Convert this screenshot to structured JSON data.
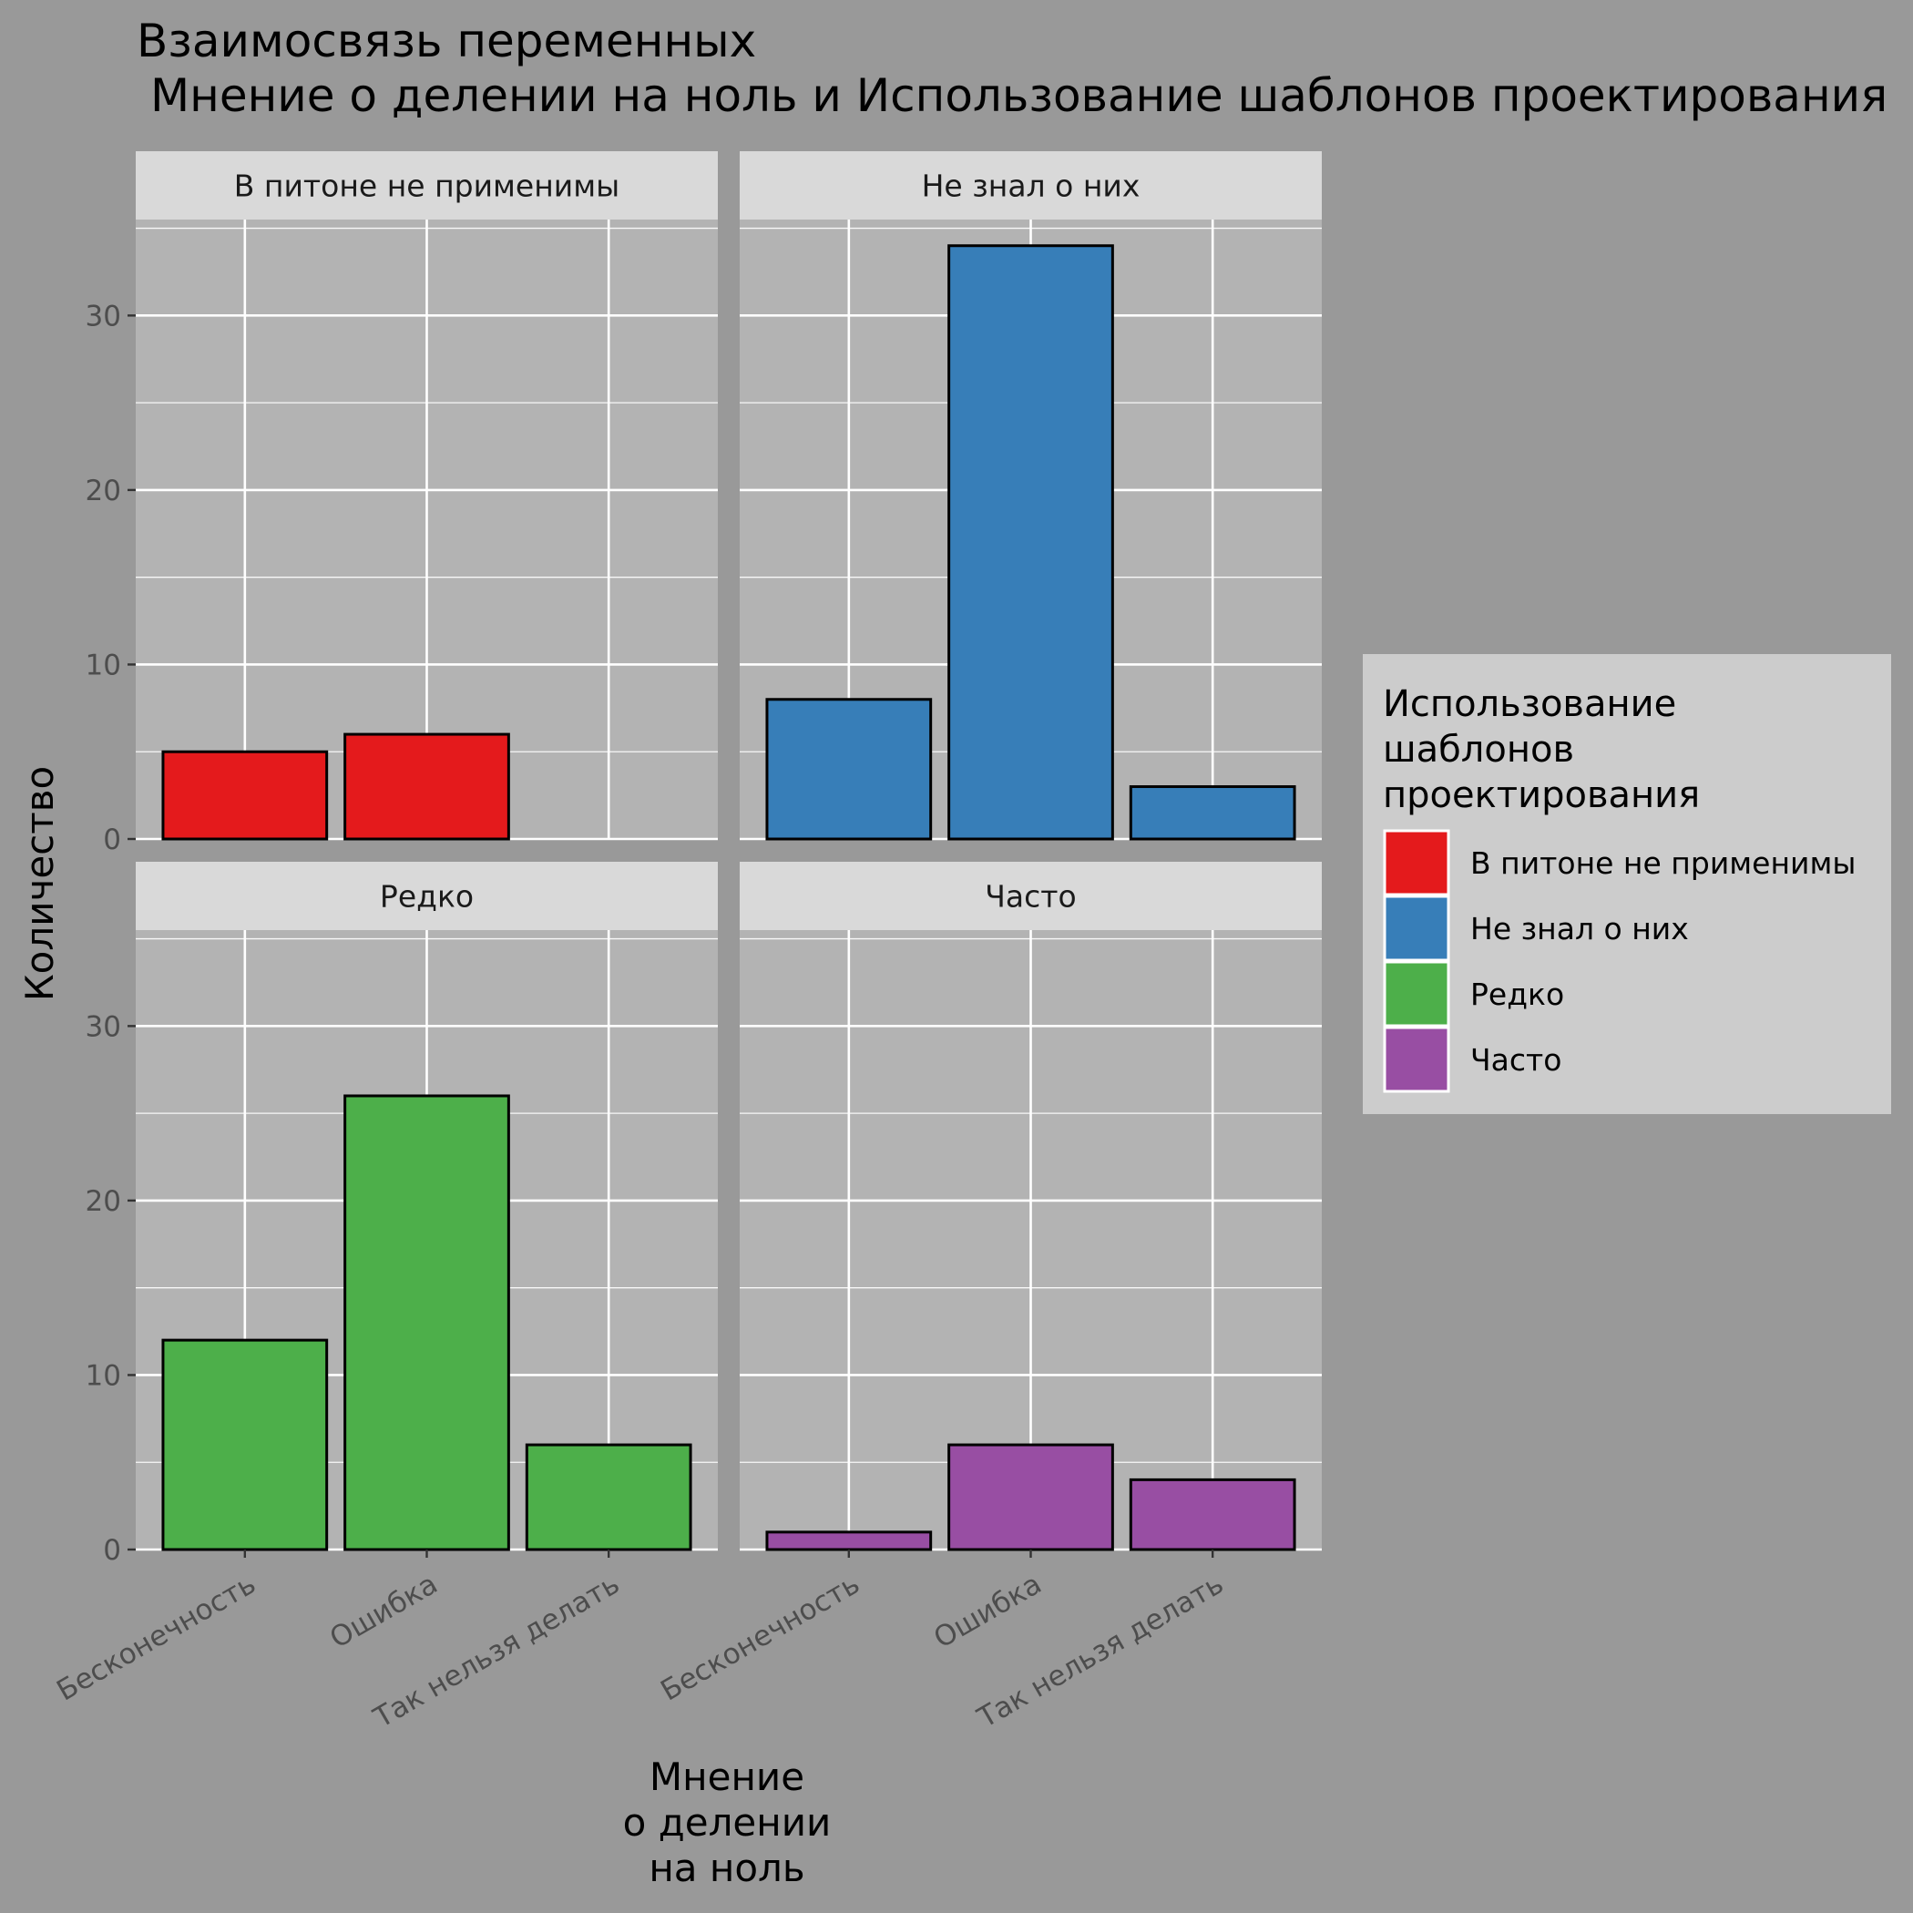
{
  "chart_data": {
    "type": "bar",
    "title_lines": [
      "Взаимосвязь переменных",
      "Мнение о делении на ноль и Использование шаблонов проектирования"
    ],
    "xlabel_lines": [
      "Мнение",
      "о делении",
      "на ноль"
    ],
    "ylabel": "Количество",
    "categories": [
      "Бесконечность",
      "Ошибка",
      "Так нельзя делать"
    ],
    "ylim": [
      0,
      35.5
    ],
    "yticks": [
      0,
      10,
      20,
      30
    ],
    "grid": true,
    "legend": {
      "title_lines": [
        "Использование",
        "шаблонов",
        "проектирования"
      ],
      "position": "right"
    },
    "facets": [
      {
        "name": "В питоне не применимы",
        "color": "#E41A1C",
        "values": [
          5,
          6,
          0
        ]
      },
      {
        "name": "Не знал о них",
        "color": "#377EB8",
        "values": [
          8,
          34,
          3
        ]
      },
      {
        "name": "Редко",
        "color": "#4DAF4A",
        "values": [
          12,
          26,
          6
        ]
      },
      {
        "name": "Часто",
        "color": "#984EA3",
        "values": [
          1,
          6,
          4
        ]
      }
    ]
  }
}
